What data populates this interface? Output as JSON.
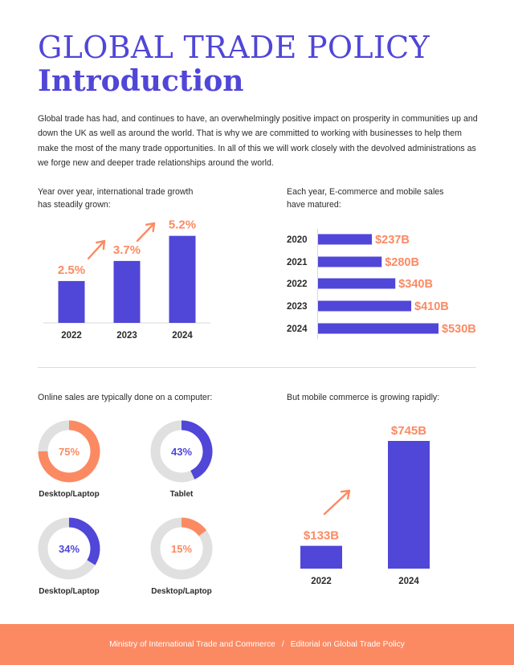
{
  "header": {
    "title_line1": "GLOBAL TRADE POLICY",
    "title_line2": "Introduction"
  },
  "intro_text": "Global trade has had, and continues to have, an overwhelmingly positive impact on prosperity in communities up and down the UK as well as around the world. That is why we are committed to working with businesses to help them make the most of the many trade opportunities. In all of this we will work closely with the devolved administrations as we forge new and deeper trade relationships around the world.",
  "captions": {
    "trade_growth_line1": "Year over year, international trade growth",
    "trade_growth_line2": "has steadily grown:",
    "ecommerce_line1": "Each year, E-commerce and mobile sales",
    "ecommerce_line2": "have matured:",
    "online_sales": "Online sales are typically done on a computer:",
    "mobile_growth": "But mobile commerce is growing rapidly:"
  },
  "colors": {
    "primary": "#5046d8",
    "accent": "#fb8a63",
    "donut_track": "#e0e0e0",
    "text": "#2b2b2b"
  },
  "chart_data": [
    {
      "type": "bar",
      "orientation": "vertical",
      "categories": [
        "2022",
        "2023",
        "2024"
      ],
      "values": [
        2.5,
        3.7,
        5.2
      ],
      "labels": [
        "2.5%",
        "3.7%",
        "5.2%"
      ],
      "ylim": [
        0,
        6
      ]
    },
    {
      "type": "bar",
      "orientation": "horizontal",
      "categories": [
        "2020",
        "2021",
        "2022",
        "2023",
        "2024"
      ],
      "values": [
        237,
        280,
        340,
        410,
        530
      ],
      "labels": [
        "$237B",
        "$280B",
        "$340B",
        "$410B",
        "$530B"
      ],
      "xlim": [
        0,
        530
      ]
    },
    {
      "type": "pie",
      "style": "donut",
      "items": [
        {
          "label": "Desktop/Laptop",
          "value": 75,
          "text": "75%",
          "color": "#fb8a63"
        },
        {
          "label": "Tablet",
          "value": 43,
          "text": "43%",
          "color": "#5046d8"
        },
        {
          "label": "Desktop/Laptop",
          "value": 34,
          "text": "34%",
          "color": "#5046d8"
        },
        {
          "label": "Desktop/Laptop",
          "value": 15,
          "text": "15%",
          "color": "#fb8a63"
        }
      ]
    },
    {
      "type": "bar",
      "orientation": "vertical",
      "categories": [
        "2022",
        "2024"
      ],
      "values": [
        133,
        745
      ],
      "labels": [
        "$133B",
        "$745B"
      ],
      "ylim": [
        0,
        745
      ]
    }
  ],
  "footer": {
    "org": "Ministry of International Trade and Commerce",
    "separator": "/",
    "doc": "Editorial on Global Trade Policy"
  }
}
